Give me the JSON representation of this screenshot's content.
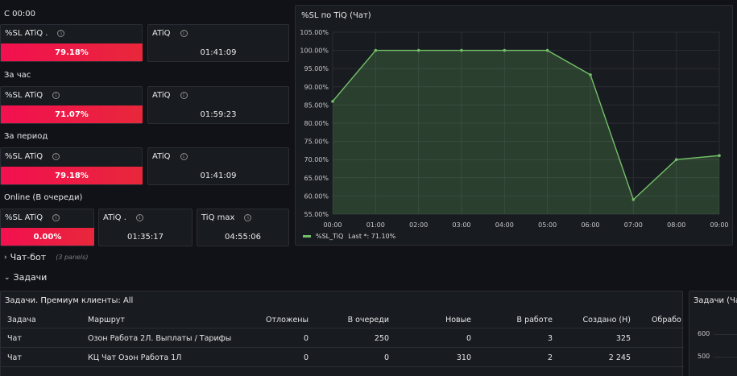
{
  "left": {
    "groups": [
      {
        "heading": "С 00:00",
        "sl": {
          "title": "%SL ATiQ .",
          "value": "79.18%"
        },
        "atiq": {
          "title": "ATiQ",
          "value": "01:41:09"
        }
      },
      {
        "heading": "За час",
        "sl": {
          "title": "%SL ATiQ",
          "value": "71.07%"
        },
        "atiq": {
          "title": "ATiQ",
          "value": "01:59:23"
        }
      },
      {
        "heading": "За период",
        "sl": {
          "title": "%SL ATiQ",
          "value": "79.18%"
        },
        "atiq": {
          "title": "ATiQ",
          "value": "01:41:09"
        }
      }
    ],
    "online": {
      "heading": "Online (В очереди)",
      "sl": {
        "title": "%SL ATiQ",
        "value": "0.00%"
      },
      "atiq": {
        "title": "ATiQ .",
        "value": "01:35:17"
      },
      "tiqmax": {
        "title": "TiQ max",
        "value": "04:55:06"
      }
    }
  },
  "chart_panel": {
    "title": "%SL по TiQ (Чат)",
    "legend_label": "%SL_TiQ",
    "legend_last": "Last *: 71.10%",
    "line_color": "#73bf69"
  },
  "chart_data": {
    "type": "area",
    "title": "%SL по TiQ (Чат)",
    "x": [
      "00:00",
      "01:00",
      "02:00",
      "03:00",
      "04:00",
      "05:00",
      "06:00",
      "07:00",
      "08:00",
      "09:00"
    ],
    "series": [
      {
        "name": "%SL_TiQ",
        "values": [
          86.0,
          100.0,
          100.0,
          100.0,
          100.0,
          100.0,
          93.3,
          59.0,
          70.0,
          71.1
        ]
      }
    ],
    "y_ticks": [
      "55.00%",
      "60.00%",
      "65.00%",
      "70.00%",
      "75.00%",
      "80.00%",
      "85.00%",
      "90.00%",
      "95.00%",
      "100.00%",
      "105.00%"
    ],
    "ylim": [
      55,
      105
    ],
    "grid": true,
    "legend": "bottom-left"
  },
  "rows": {
    "chatbot": {
      "label": "Чат-бот",
      "note": "(3 panels)"
    },
    "tasks": {
      "label": "Задачи"
    }
  },
  "table_panel": {
    "title": "Задачи. Премиум клиенты: All",
    "columns": [
      "Задача",
      "Маршрут",
      "Отложены",
      "В очереди",
      "Новые",
      "В работе",
      "Создано (Н)",
      "Обрабо"
    ],
    "rows": [
      [
        "Чат",
        "Озон Работа 2Л. Выплаты / Тарифы",
        "0",
        "250",
        "0",
        "3",
        "325",
        ""
      ],
      [
        "Чат",
        "КЦ Чат Озон Работа 1Л",
        "0",
        "0",
        "310",
        "2",
        "2 245",
        ""
      ]
    ]
  },
  "right_panel": {
    "title": "Задачи (Чат",
    "y_ticks": [
      "600",
      "500"
    ]
  }
}
